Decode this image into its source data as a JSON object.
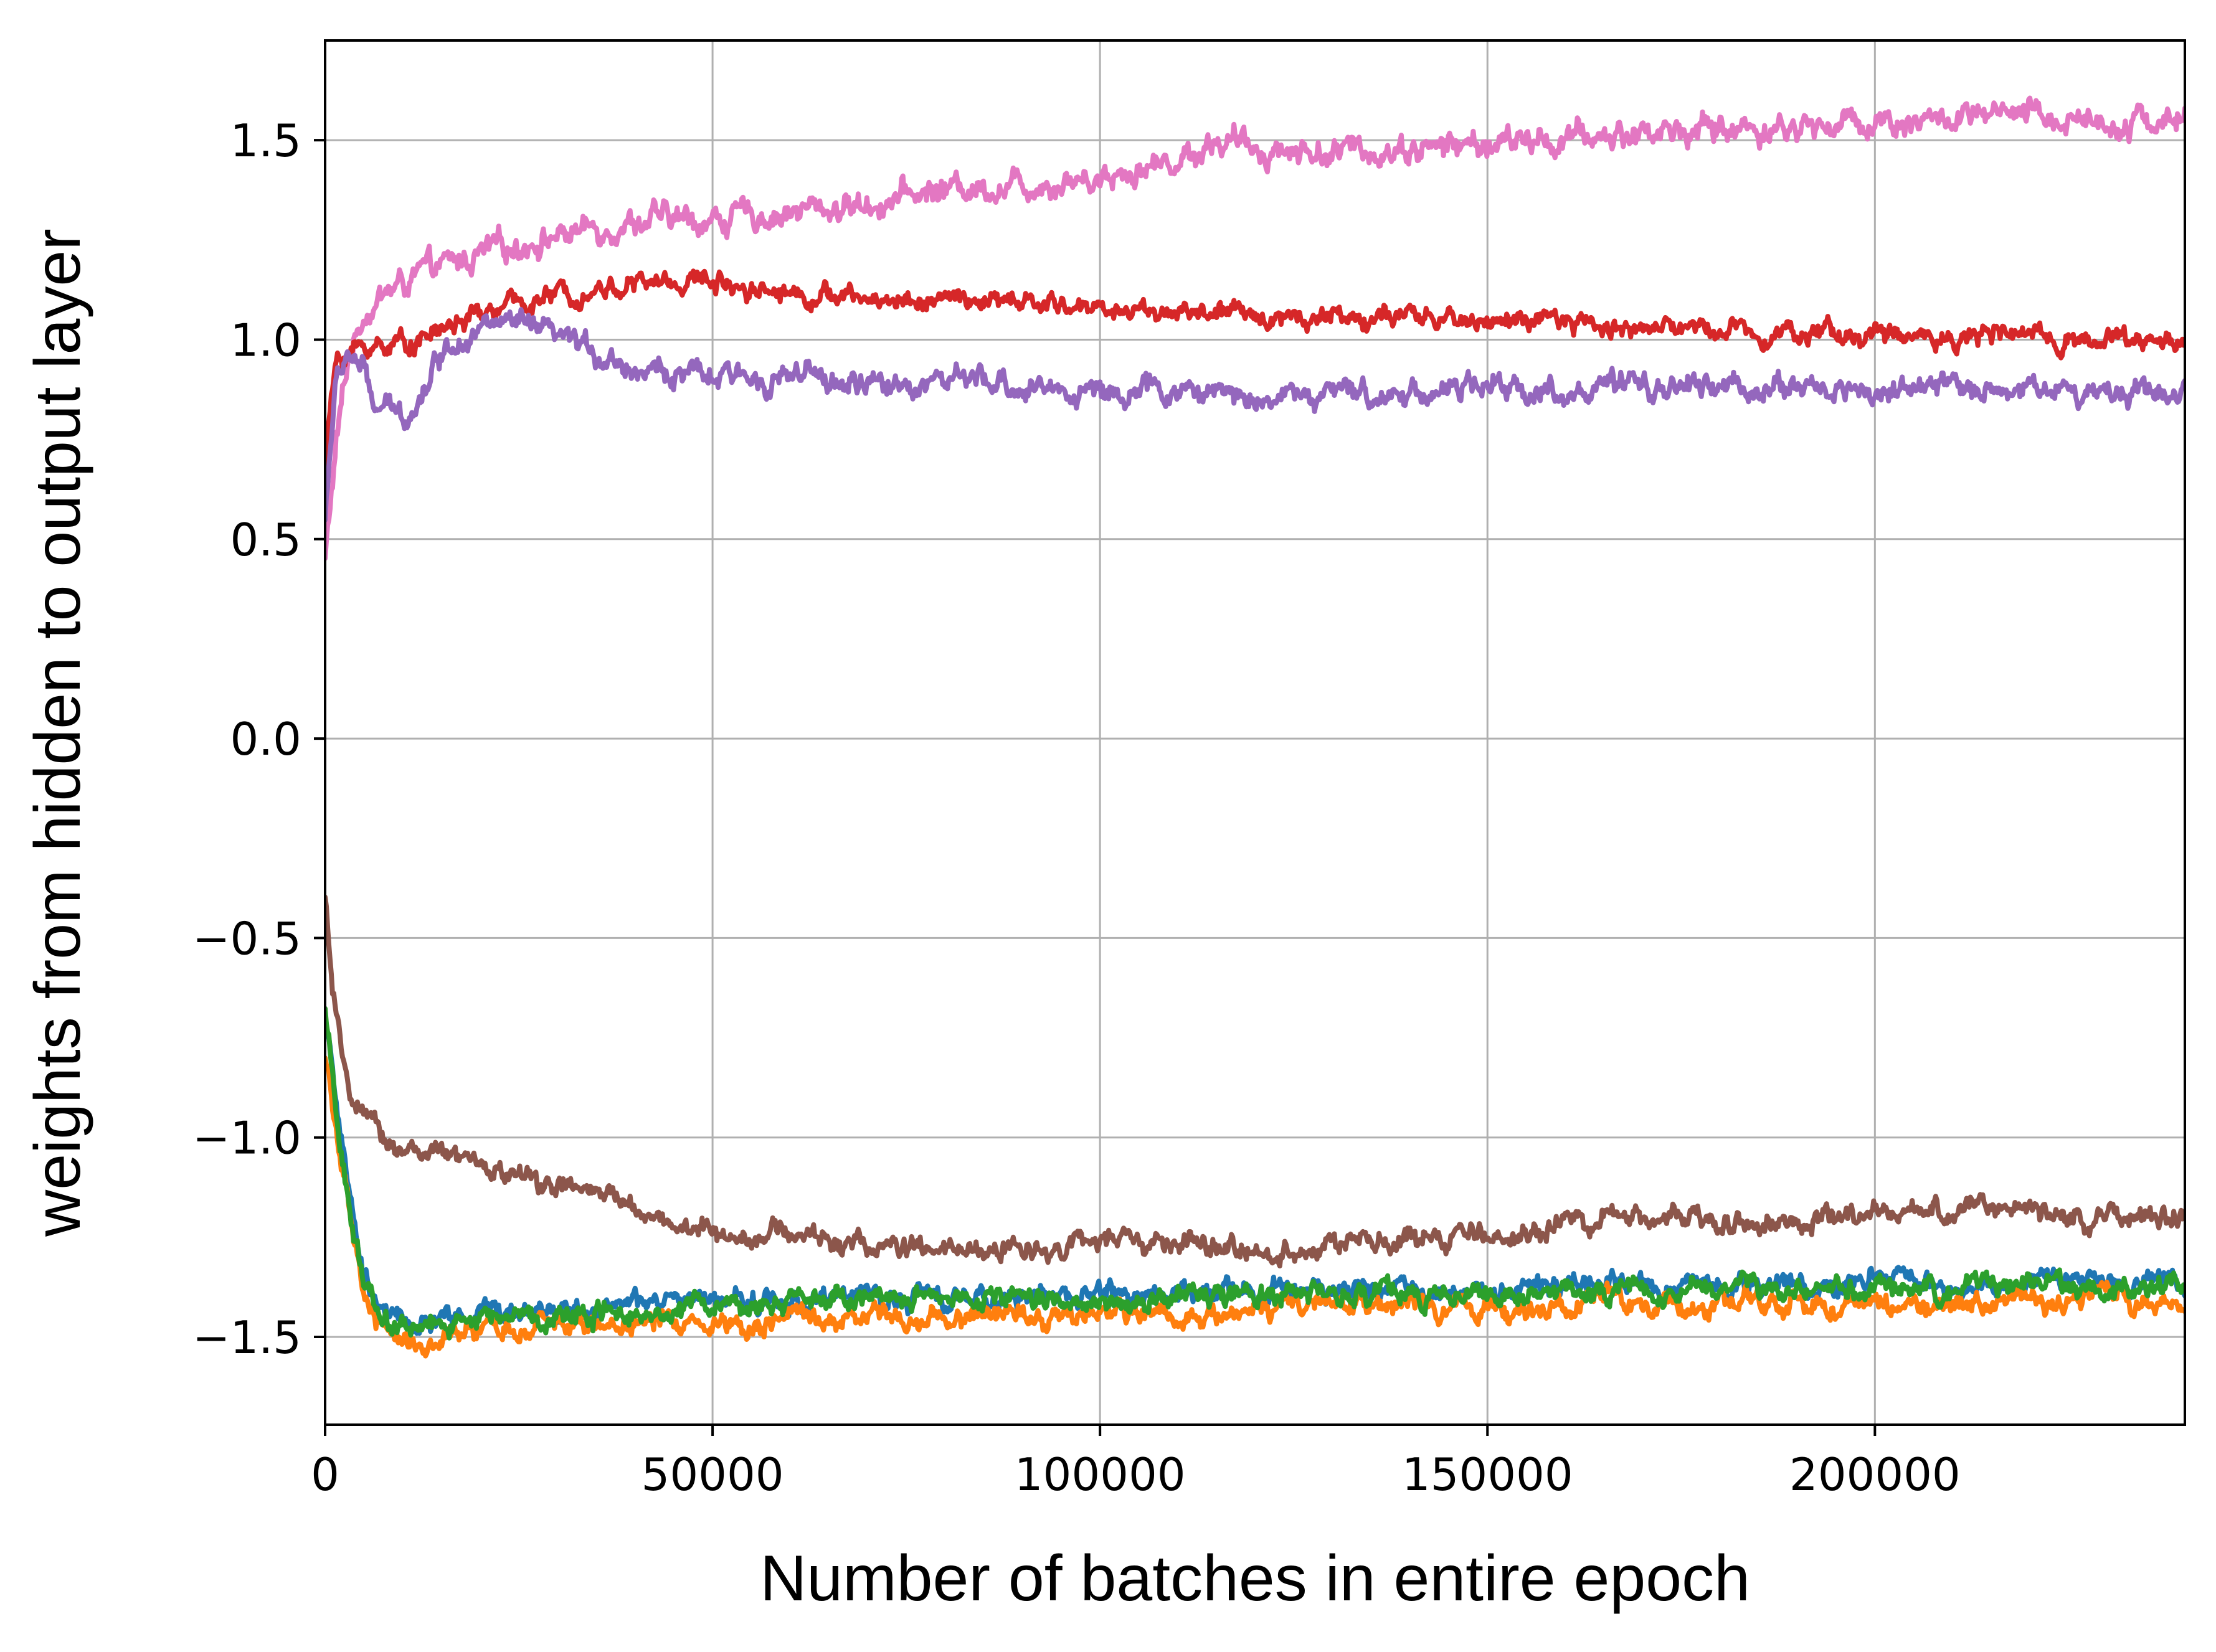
{
  "chart_data": {
    "type": "line",
    "title": "",
    "xlabel": "Number of batches in entire epoch",
    "ylabel": "weights from hidden to output layer",
    "xlim": [
      0,
      240000
    ],
    "ylim": [
      -1.72,
      1.75
    ],
    "xticks": [
      0,
      50000,
      100000,
      150000,
      200000
    ],
    "yticks": [
      -1.5,
      -1.0,
      -0.5,
      0.0,
      0.5,
      1.0,
      1.5
    ],
    "xtick_labels": [
      "0",
      "50000",
      "100000",
      "150000",
      "200000"
    ],
    "ytick_labels": [
      "−1.5",
      "−1.0",
      "−0.5",
      "0.0",
      "0.5",
      "1.0",
      "1.5"
    ],
    "grid": true,
    "legend": "none",
    "series": [
      {
        "color": "#e377c2",
        "noise": 0.02,
        "x": [
          0,
          500,
          1500,
          3000,
          5000,
          8000,
          12000,
          18000,
          25000,
          32000,
          40000,
          50000,
          60000,
          70000,
          80000,
          90000,
          100000,
          110000,
          115000,
          120000,
          130000,
          140000,
          150000,
          160000,
          170000,
          180000,
          190000,
          200000,
          210000,
          220000,
          230000,
          240000
        ],
        "y": [
          0.45,
          0.55,
          0.75,
          0.95,
          1.07,
          1.12,
          1.16,
          1.2,
          1.24,
          1.27,
          1.3,
          1.3,
          1.32,
          1.34,
          1.38,
          1.39,
          1.41,
          1.45,
          1.5,
          1.48,
          1.47,
          1.48,
          1.49,
          1.5,
          1.52,
          1.53,
          1.53,
          1.55,
          1.55,
          1.56,
          1.55,
          1.55
        ]
      },
      {
        "color": "#d62728",
        "noise": 0.015,
        "x": [
          0,
          500,
          1500,
          3000,
          5000,
          8000,
          12000,
          18000,
          25000,
          32000,
          40000,
          50000,
          60000,
          70000,
          80000,
          90000,
          100000,
          110000,
          120000,
          130000,
          140000,
          150000,
          160000,
          170000,
          180000,
          190000,
          200000,
          210000,
          220000,
          230000,
          240000
        ],
        "y": [
          0.65,
          0.8,
          0.95,
          0.97,
          0.98,
          0.99,
          1.0,
          1.05,
          1.09,
          1.12,
          1.14,
          1.15,
          1.12,
          1.1,
          1.1,
          1.09,
          1.08,
          1.07,
          1.06,
          1.06,
          1.05,
          1.05,
          1.04,
          1.03,
          1.03,
          1.02,
          1.01,
          1.01,
          1.01,
          1.0,
          1.0
        ]
      },
      {
        "color": "#9467bd",
        "noise": 0.018,
        "x": [
          0,
          500,
          1500,
          3000,
          5000,
          6000,
          8000,
          10000,
          12000,
          15000,
          18000,
          22000,
          26000,
          30000,
          35000,
          40000,
          50000,
          60000,
          70000,
          80000,
          90000,
          100000,
          110000,
          120000,
          130000,
          140000,
          150000,
          160000,
          170000,
          180000,
          190000,
          200000,
          210000,
          220000,
          230000,
          240000
        ],
        "y": [
          0.55,
          0.7,
          0.9,
          0.97,
          0.92,
          0.84,
          0.82,
          0.81,
          0.85,
          0.97,
          1.02,
          1.04,
          1.03,
          1.0,
          0.97,
          0.93,
          0.9,
          0.91,
          0.88,
          0.9,
          0.88,
          0.87,
          0.87,
          0.86,
          0.86,
          0.87,
          0.88,
          0.87,
          0.88,
          0.88,
          0.88,
          0.87,
          0.88,
          0.88,
          0.87,
          0.88
        ]
      },
      {
        "color": "#8c564b",
        "noise": 0.016,
        "x": [
          0,
          800,
          2000,
          4000,
          6000,
          9000,
          13000,
          18000,
          25000,
          32000,
          40000,
          45000,
          50000,
          60000,
          70000,
          80000,
          90000,
          100000,
          110000,
          120000,
          130000,
          140000,
          150000,
          160000,
          170000,
          180000,
          190000,
          200000,
          210000,
          220000,
          230000,
          240000
        ],
        "y": [
          -0.4,
          -0.6,
          -0.8,
          -0.92,
          -0.98,
          -1.02,
          -1.04,
          -1.06,
          -1.1,
          -1.13,
          -1.17,
          -1.22,
          -1.24,
          -1.24,
          -1.27,
          -1.29,
          -1.28,
          -1.26,
          -1.27,
          -1.29,
          -1.27,
          -1.26,
          -1.25,
          -1.22,
          -1.2,
          -1.2,
          -1.22,
          -1.2,
          -1.18,
          -1.18,
          -1.2,
          -1.2
        ]
      },
      {
        "color": "#1f77b4",
        "noise": 0.016,
        "x": [
          0,
          800,
          2000,
          3500,
          5000,
          7000,
          9000,
          11000,
          13000,
          15000,
          20000,
          30000,
          40000,
          50000,
          60000,
          70000,
          80000,
          90000,
          100000,
          110000,
          120000,
          130000,
          140000,
          150000,
          160000,
          170000,
          180000,
          190000,
          200000,
          210000,
          220000,
          230000,
          240000
        ],
        "y": [
          -0.68,
          -0.8,
          -1.0,
          -1.2,
          -1.35,
          -1.42,
          -1.46,
          -1.47,
          -1.47,
          -1.46,
          -1.44,
          -1.43,
          -1.42,
          -1.41,
          -1.41,
          -1.4,
          -1.4,
          -1.4,
          -1.39,
          -1.39,
          -1.39,
          -1.38,
          -1.38,
          -1.38,
          -1.37,
          -1.37,
          -1.37,
          -1.37,
          -1.36,
          -1.36,
          -1.36,
          -1.36,
          -1.36
        ]
      },
      {
        "color": "#ff7f0e",
        "noise": 0.016,
        "x": [
          0,
          800,
          2000,
          3500,
          5000,
          7000,
          9000,
          11000,
          13000,
          15000,
          20000,
          30000,
          40000,
          50000,
          60000,
          70000,
          80000,
          90000,
          100000,
          110000,
          120000,
          130000,
          140000,
          150000,
          160000,
          170000,
          180000,
          190000,
          200000,
          210000,
          220000,
          230000,
          240000
        ],
        "y": [
          -0.8,
          -0.88,
          -1.05,
          -1.25,
          -1.4,
          -1.47,
          -1.5,
          -1.51,
          -1.52,
          -1.51,
          -1.49,
          -1.47,
          -1.46,
          -1.46,
          -1.46,
          -1.45,
          -1.45,
          -1.44,
          -1.44,
          -1.44,
          -1.43,
          -1.43,
          -1.43,
          -1.43,
          -1.42,
          -1.42,
          -1.42,
          -1.42,
          -1.42,
          -1.42,
          -1.41,
          -1.41,
          -1.42
        ]
      },
      {
        "color": "#2ca02c",
        "noise": 0.016,
        "x": [
          0,
          800,
          2000,
          3500,
          5000,
          7000,
          9000,
          11000,
          13000,
          15000,
          20000,
          30000,
          40000,
          50000,
          60000,
          70000,
          80000,
          90000,
          100000,
          110000,
          120000,
          130000,
          140000,
          150000,
          160000,
          170000,
          180000,
          190000,
          200000,
          210000,
          220000,
          230000,
          240000
        ],
        "y": [
          -0.7,
          -0.82,
          -1.02,
          -1.22,
          -1.37,
          -1.44,
          -1.47,
          -1.48,
          -1.48,
          -1.47,
          -1.45,
          -1.44,
          -1.43,
          -1.42,
          -1.42,
          -1.41,
          -1.41,
          -1.41,
          -1.4,
          -1.4,
          -1.4,
          -1.39,
          -1.39,
          -1.39,
          -1.39,
          -1.38,
          -1.38,
          -1.38,
          -1.38,
          -1.38,
          -1.38,
          -1.38,
          -1.38
        ]
      }
    ]
  }
}
